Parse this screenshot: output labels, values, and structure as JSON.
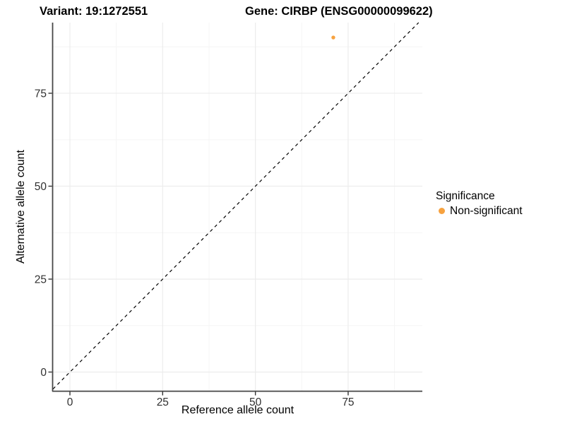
{
  "header": {
    "variant_title": "Variant: 19:1272551",
    "gene_title": "Gene: CIRBP (ENSG00000099622)"
  },
  "axes": {
    "x_label": "Reference allele count",
    "y_label": "Alternative allele count"
  },
  "legend": {
    "title": "Significance",
    "items": [
      {
        "label": "Non-significant",
        "color": "#F7A23F"
      }
    ]
  },
  "colors": {
    "accent": "#F7A23F",
    "axis_line": "#474747",
    "tick_mark": "#333333",
    "tick_label": "#303030",
    "grid_major": "#ececec",
    "grid_minor": "#f5f5f5",
    "reference_line": "#000000"
  },
  "chart_data": {
    "type": "scatter",
    "title": "Variant: 19:1272551 — Gene: CIRBP (ENSG00000099622)",
    "xlabel": "Reference allele count",
    "ylabel": "Alternative allele count",
    "x_ticks": [
      0,
      25,
      50,
      75
    ],
    "y_ticks": [
      0,
      25,
      50,
      75
    ],
    "xlim": [
      -4.57,
      95.0
    ],
    "ylim": [
      -5.04,
      94.0
    ],
    "grid": true,
    "legend_position": "right",
    "series": [
      {
        "name": "Non-significant",
        "color": "#F7A23F",
        "points": [
          [
            71,
            90
          ]
        ]
      }
    ],
    "reference_line": {
      "type": "identity",
      "slope": 1,
      "intercept": 0,
      "style": "dashed",
      "color": "#000000"
    }
  }
}
